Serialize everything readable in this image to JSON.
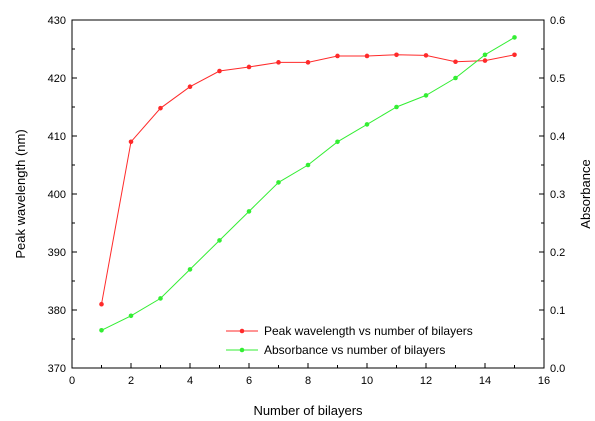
{
  "chart_data": {
    "type": "line",
    "xlabel": "Number of bilayers",
    "ylabel_left": "Peak wavelength (nm)",
    "ylabel_right": "Absorbance",
    "xlim": [
      0,
      16
    ],
    "ylim_left": [
      370,
      430
    ],
    "ylim_right": [
      0.0,
      0.6
    ],
    "x_ticks": [
      "0",
      "2",
      "4",
      "6",
      "8",
      "10",
      "12",
      "14",
      "16"
    ],
    "y_left_ticks": [
      "370",
      "380",
      "390",
      "400",
      "410",
      "420",
      "430"
    ],
    "y_right_ticks": [
      "0.0",
      "0.1",
      "0.2",
      "0.3",
      "0.4",
      "0.5",
      "0.6"
    ],
    "grid": false,
    "legend_position": "bottom-right",
    "series": [
      {
        "name": "Peak wavelength vs number of bilayers",
        "axis": "left",
        "color": "#ff2a2a",
        "x": [
          1,
          2,
          3,
          4,
          5,
          6,
          7,
          8,
          9,
          10,
          11,
          12,
          13,
          14,
          15
        ],
        "values": [
          381,
          409,
          414.8,
          418.5,
          421.2,
          421.9,
          422.7,
          422.7,
          423.8,
          423.8,
          424,
          423.9,
          422.8,
          423,
          424
        ]
      },
      {
        "name": "Absorbance vs number of bilayers",
        "axis": "right",
        "color": "#33ee33",
        "x": [
          1,
          2,
          3,
          4,
          5,
          6,
          7,
          8,
          9,
          10,
          11,
          12,
          13,
          14,
          15
        ],
        "values": [
          0.065,
          0.09,
          0.12,
          0.17,
          0.22,
          0.27,
          0.32,
          0.35,
          0.39,
          0.42,
          0.45,
          0.47,
          0.5,
          0.54,
          0.57
        ]
      }
    ]
  }
}
